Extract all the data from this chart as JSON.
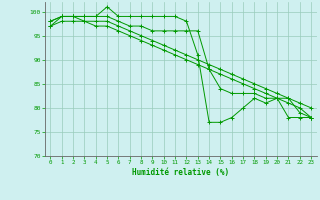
{
  "background_color": "#cff0f0",
  "grid_color": "#99ccbb",
  "line_color": "#009900",
  "marker_color": "#009900",
  "xlabel": "Humidité relative (%)",
  "xlabel_color": "#009900",
  "tick_color": "#009900",
  "label_color": "#009900",
  "ylim": [
    70,
    102
  ],
  "xlim": [
    -0.5,
    23.5
  ],
  "yticks": [
    70,
    75,
    80,
    85,
    90,
    95,
    100
  ],
  "xticks": [
    0,
    1,
    2,
    3,
    4,
    5,
    6,
    7,
    8,
    9,
    10,
    11,
    12,
    13,
    14,
    15,
    16,
    17,
    18,
    19,
    20,
    21,
    22,
    23
  ],
  "series": [
    [
      97,
      99,
      99,
      99,
      99,
      101,
      99,
      99,
      99,
      99,
      99,
      99,
      98,
      91,
      77,
      77,
      78,
      80,
      82,
      81,
      82,
      78,
      78,
      78
    ],
    [
      98,
      99,
      99,
      99,
      99,
      99,
      98,
      97,
      97,
      96,
      96,
      96,
      96,
      96,
      88,
      84,
      83,
      83,
      83,
      82,
      82,
      82,
      79,
      78
    ],
    [
      98,
      99,
      99,
      98,
      98,
      98,
      97,
      96,
      95,
      94,
      93,
      92,
      91,
      90,
      89,
      88,
      87,
      86,
      85,
      84,
      83,
      82,
      81,
      80
    ],
    [
      97,
      98,
      98,
      98,
      97,
      97,
      96,
      95,
      94,
      93,
      92,
      91,
      90,
      89,
      88,
      87,
      86,
      85,
      84,
      83,
      82,
      81,
      80,
      78
    ]
  ]
}
